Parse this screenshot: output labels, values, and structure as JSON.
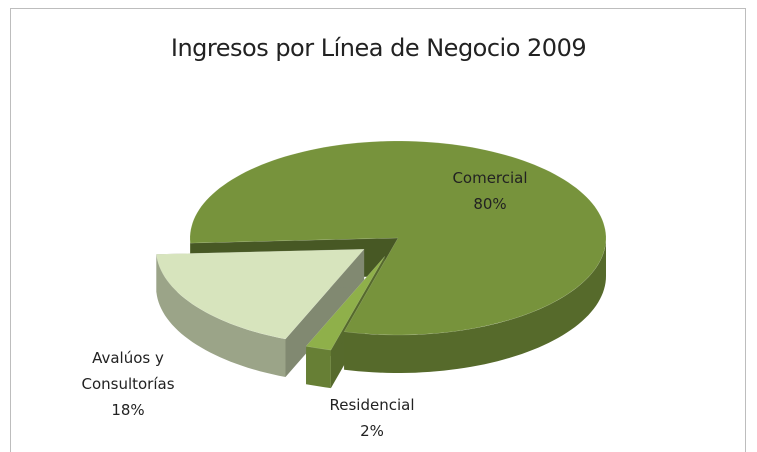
{
  "chart_data": {
    "type": "pie",
    "title": "Ingresos por Línea de Negocio 2009",
    "categories": [
      "Comercial",
      "Residencial",
      "Avalúos y Consultorías"
    ],
    "values": [
      80,
      2,
      18
    ],
    "value_labels": [
      "80%",
      "2%",
      "18%"
    ],
    "colors": [
      "#77933c",
      "#8fb04a",
      "#d7e4bd"
    ]
  }
}
